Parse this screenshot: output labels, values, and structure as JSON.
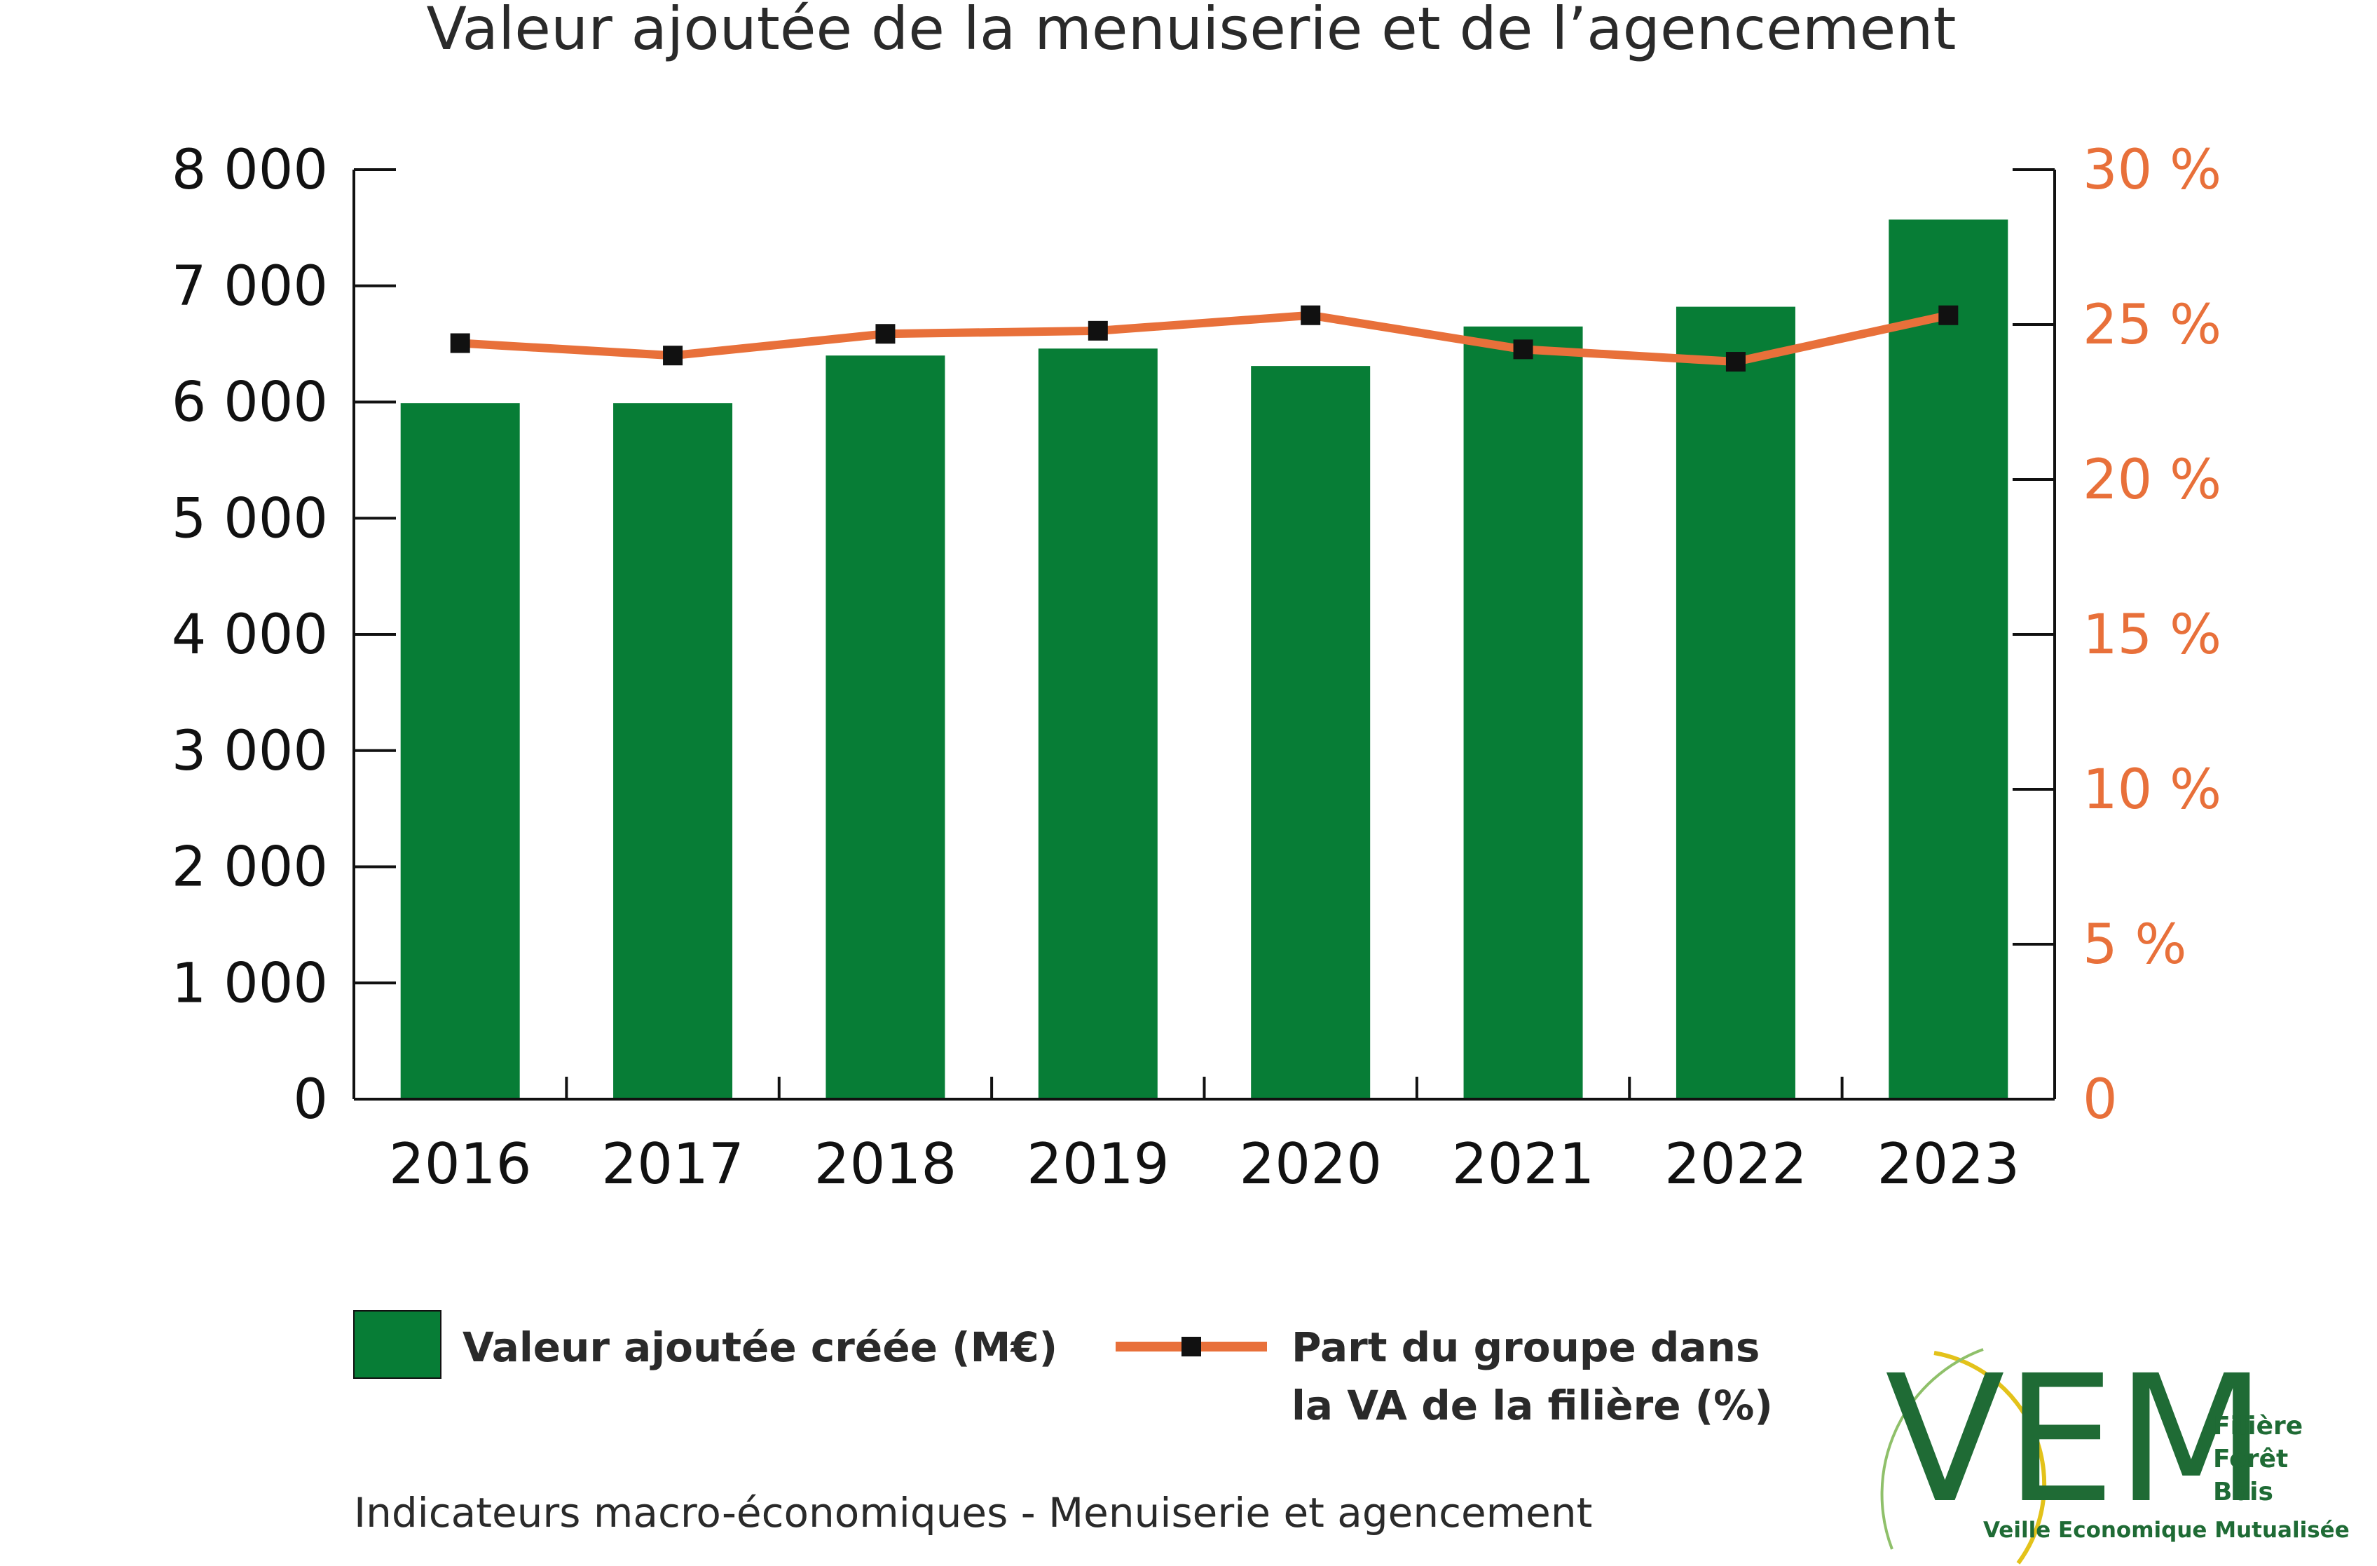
{
  "chart_data": {
    "type": "bar",
    "title": "Valeur ajoutée de la menuiserie et de l’agencement",
    "categories": [
      "2016",
      "2017",
      "2018",
      "2019",
      "2020",
      "2021",
      "2022",
      "2023"
    ],
    "series": [
      {
        "name": "Valeur ajoutée créée (M€)",
        "type": "bar",
        "axis": "left",
        "color": "#077d36",
        "values": [
          5990,
          5990,
          6400,
          6460,
          6310,
          6650,
          6820,
          7570
        ]
      },
      {
        "name": "Part du groupe dans la VA de la filière  (%)",
        "type": "line",
        "axis": "right",
        "color": "#e8703a",
        "marker_color": "#111111",
        "values": [
          24.4,
          24.0,
          24.7,
          24.8,
          25.3,
          24.2,
          23.8,
          25.3
        ]
      }
    ],
    "y_left": {
      "ylim": [
        0,
        8000
      ],
      "ticks": [
        0,
        1000,
        2000,
        3000,
        4000,
        5000,
        6000,
        7000,
        8000
      ],
      "tick_labels": [
        "0",
        "1 000",
        "2 000",
        "3 000",
        "4 000",
        "5 000",
        "6 000",
        "7 000",
        "8 000"
      ]
    },
    "y_right": {
      "ylim": [
        0,
        30
      ],
      "ticks": [
        0,
        5,
        10,
        15,
        20,
        25,
        30
      ],
      "tick_labels": [
        "0",
        "5 %",
        "10 %",
        "15 %",
        "20 %",
        "25 %",
        "30 %"
      ],
      "color": "#e8703a"
    },
    "grid": false,
    "legend_position": "bottom"
  },
  "legend": {
    "bar_label": "Valeur ajoutée créée (M€)",
    "line_label_1": "Part du groupe dans",
    "line_label_2": "la VA de la filière  (%)"
  },
  "footer": {
    "text": "Indicateurs macro-économiques - Menuiserie et agencement"
  },
  "logo": {
    "letters": "VEM",
    "line1": "Filière",
    "line2": "Forêt",
    "line3": "Bois",
    "tagline": "Veille Economique Mutualisée",
    "color": "#1f6b35",
    "accent_color": "#e3c21a"
  }
}
